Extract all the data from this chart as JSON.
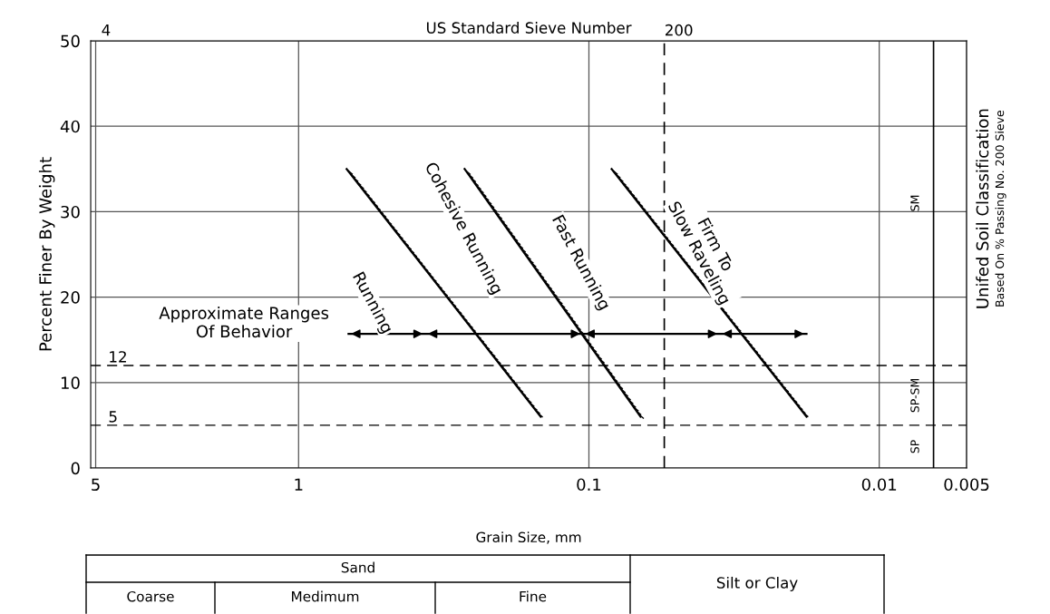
{
  "chart_data": {
    "type": "line",
    "title": "US Standard Sieve Number",
    "xlabel": "Grain Size, mm",
    "ylabel": "Percent Finer By Weight",
    "log": "x",
    "xlim": [
      5.2,
      0.005
    ],
    "xticks": [
      5,
      1,
      0.1,
      0.01,
      0.005
    ],
    "ylim": [
      0,
      50
    ],
    "yticks": [
      0,
      10,
      20,
      30,
      40,
      50
    ],
    "grid": true,
    "line_style": "solid",
    "series": [
      {
        "color": "#000000",
        "x": [
          0.683,
          0.1466
        ],
        "values": [
          35,
          6
        ]
      },
      {
        "color": "#000000",
        "x": [
          0.268,
          0.0664
        ],
        "values": [
          35,
          6
        ]
      },
      {
        "color": "#000000",
        "x": [
          0.0835,
          0.0178
        ],
        "values": [
          35,
          6
        ]
      },
      {
        "color": "#000000",
        "x": [
          0.673,
          0.366,
          0.105,
          0.0354,
          0.0178
        ],
        "values": [
          15.7,
          15.7,
          15.7,
          15.7,
          15.7
        ]
      }
    ],
    "ref_lines": [
      {
        "axis": "y",
        "value": 12,
        "label": "12",
        "line_style": "dashed",
        "color": "#000000"
      },
      {
        "axis": "y",
        "value": 5,
        "label": "5",
        "line_style": "dashed",
        "color": "#000000"
      },
      {
        "axis": "x",
        "value": 0.055,
        "line_style": "dashed",
        "color": "#000000"
      },
      {
        "axis": "x",
        "value": 0.0065,
        "line_style": "solid",
        "color": "#000000"
      }
    ],
    "annotations": [
      "Running",
      "Cohesive Running",
      "Fast Running",
      "Firm To\nSlow Raveling",
      "Approximate Ranges\nOf Behavior",
      "SM",
      "SP-SM",
      "SP",
      "4",
      "200",
      "Unifed Soil Classification",
      "Based On % Passing No. 200 Sieve",
      "Sand",
      "Coarse",
      "Medimum",
      "Fine",
      "Silt or Clay"
    ]
  }
}
